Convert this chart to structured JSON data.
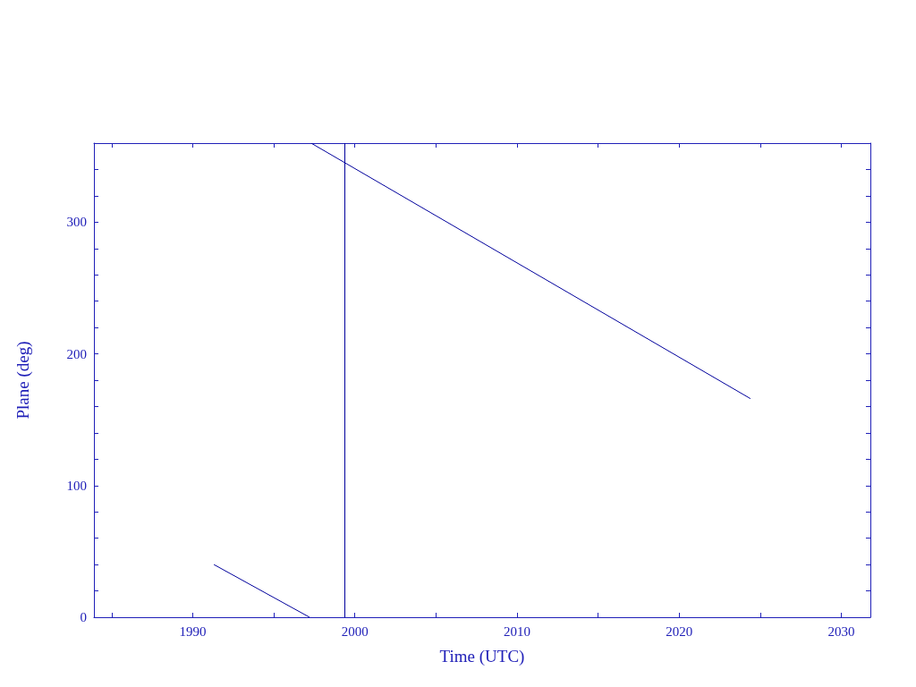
{
  "chart_data": {
    "type": "line",
    "xlabel": "Time (UTC)",
    "ylabel": "Plane (deg)",
    "x": [
      1991.3,
      1997.2,
      1997.25,
      1997.3,
      2024.4
    ],
    "series": [
      {
        "color": "#00009c",
        "values": [
          40,
          0,
          null,
          360,
          166
        ]
      }
    ],
    "xlim": [
      1983.9,
      2031.8
    ],
    "xticks": [
      {
        "value": 1985,
        "label": null
      },
      1990,
      {
        "value": 1995,
        "label": null
      },
      2000,
      {
        "value": 2005,
        "label": null
      },
      2010,
      {
        "value": 2015,
        "label": null
      },
      2020,
      {
        "value": 2025,
        "label": null
      },
      2030
    ],
    "ylim": [
      0,
      360
    ],
    "yticks": [
      0,
      {
        "value": 20,
        "label": null
      },
      {
        "value": 40,
        "label": null
      },
      {
        "value": 60,
        "label": null
      },
      {
        "value": 80,
        "label": null
      },
      100,
      {
        "value": 120,
        "label": null
      },
      {
        "value": 140,
        "label": null
      },
      {
        "value": 160,
        "label": null
      },
      {
        "value": 180,
        "label": null
      },
      200,
      {
        "value": 220,
        "label": null
      },
      {
        "value": 240,
        "label": null
      },
      {
        "value": 260,
        "label": null
      },
      {
        "value": 280,
        "label": null
      },
      300,
      {
        "value": 320,
        "label": null
      },
      {
        "value": 340,
        "label": null
      }
    ],
    "ref_lines": [
      {
        "axis": "x",
        "value": 1999.35,
        "color": "#00009c"
      }
    ],
    "grid": false,
    "marker": "none",
    "line_style": "solid"
  }
}
